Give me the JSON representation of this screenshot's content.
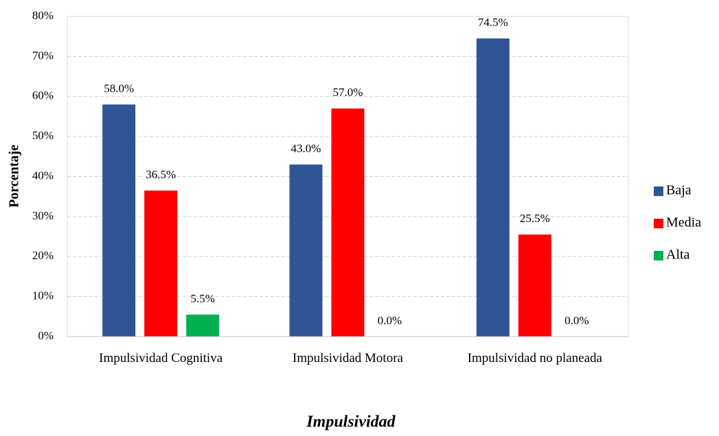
{
  "chart_data": {
    "type": "bar",
    "x_label": "Impulsividad",
    "y_label": "Porcentaje",
    "categories": [
      "Impulsividad Cognitiva",
      "Impulsividad Motora",
      "Impulsividad no planeada"
    ],
    "series": [
      {
        "name": "Baja",
        "color": "#2f5597",
        "values": [
          58.0,
          43.0,
          74.5
        ],
        "value_labels": [
          "58.0%",
          "43.0%",
          "74.5%"
        ]
      },
      {
        "name": "Media",
        "color": "#ff0000",
        "values": [
          36.5,
          57.0,
          25.5
        ],
        "value_labels": [
          "36.5%",
          "57.0%",
          "25.5%"
        ]
      },
      {
        "name": "Alta",
        "color": "#00b050",
        "values": [
          5.5,
          0.0,
          0.0
        ],
        "value_labels": [
          "5.5%",
          "0.0%",
          "0.0%"
        ]
      }
    ],
    "ylim": [
      0,
      80
    ],
    "yticks": [
      {
        "value": 0,
        "label": "0%"
      },
      {
        "value": 10,
        "label": "10%"
      },
      {
        "value": 20,
        "label": "20%"
      },
      {
        "value": 30,
        "label": "30%"
      },
      {
        "value": 40,
        "label": "40%"
      },
      {
        "value": 50,
        "label": "50%"
      },
      {
        "value": 60,
        "label": "60%"
      },
      {
        "value": 70,
        "label": "70%"
      },
      {
        "value": 80,
        "label": "80%"
      }
    ],
    "grid": true,
    "legend": "right"
  }
}
